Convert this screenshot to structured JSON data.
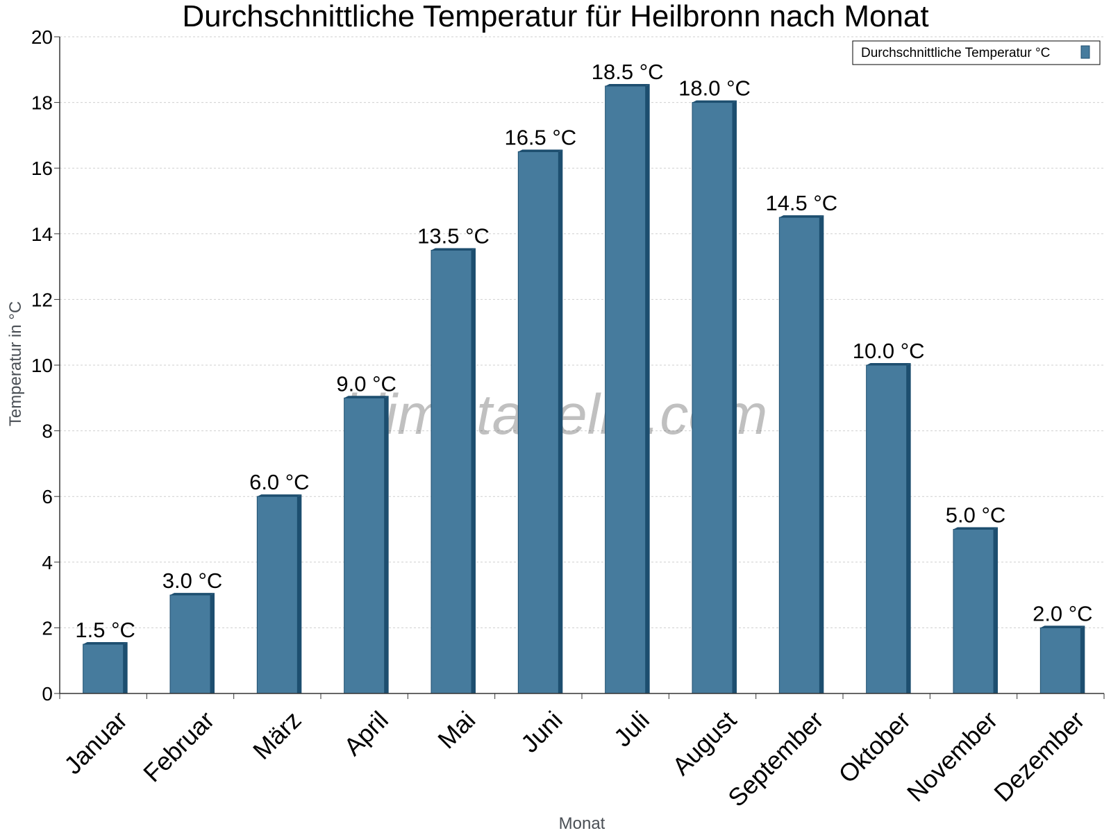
{
  "chart_data": {
    "type": "bar",
    "title": "Durchschnittliche Temperatur für Heilbronn nach Monat",
    "xlabel": "Monat",
    "ylabel": "Temperatur in °C",
    "categories": [
      "Januar",
      "Februar",
      "März",
      "April",
      "Mai",
      "Juni",
      "Juli",
      "August",
      "September",
      "Oktober",
      "November",
      "Dezember"
    ],
    "series": [
      {
        "name": "Durchschnittliche Temperatur °C",
        "values": [
          1.5,
          3.0,
          6.0,
          9.0,
          13.5,
          16.5,
          18.5,
          18.0,
          14.5,
          10.0,
          5.0,
          2.0
        ],
        "data_labels": [
          "1.5 °C",
          "3.0 °C",
          "6.0 °C",
          "9.0 °C",
          "13.5 °C",
          "16.5 °C",
          "18.5 °C",
          "18.0 °C",
          "14.5 °C",
          "10.0 °C",
          "5.0 °C",
          "2.0 °C"
        ]
      }
    ],
    "ylim": [
      0,
      20
    ],
    "yticks": [
      0,
      2,
      4,
      6,
      8,
      10,
      12,
      14,
      16,
      18,
      20
    ],
    "grid": true,
    "legend_position": "top-right",
    "watermark": "klimatabelle.com",
    "colors": {
      "bar": "#467b9d",
      "bar_dark": "#1d4e6f",
      "grid": "#cfcfcf",
      "axis": "#333333"
    }
  }
}
